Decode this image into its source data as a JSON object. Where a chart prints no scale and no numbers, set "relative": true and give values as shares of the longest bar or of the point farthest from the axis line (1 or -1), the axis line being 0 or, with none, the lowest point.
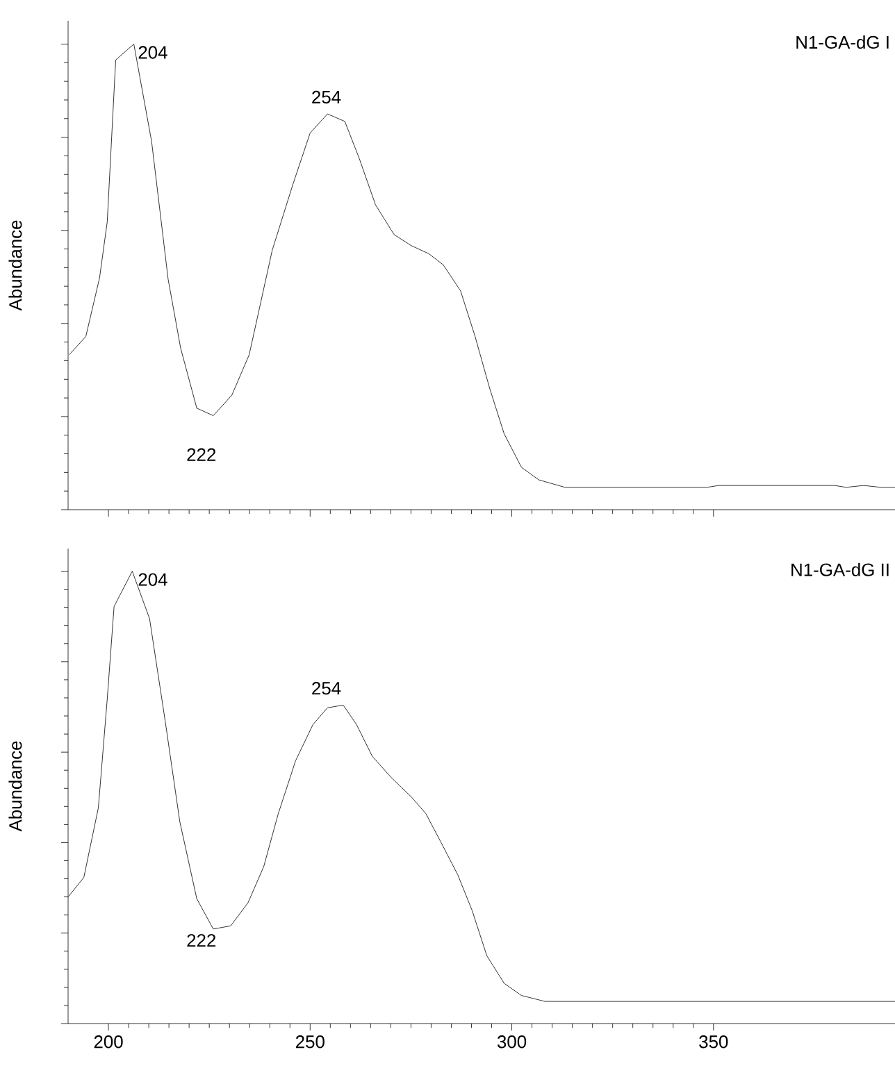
{
  "chart_data": [
    {
      "type": "line",
      "title": "N1-GA-dG I",
      "ylabel": "Abundance",
      "relative": true,
      "tick_labels": false,
      "color": "#000000",
      "xlim": [
        190,
        395
      ],
      "xticks": [
        200,
        250,
        300,
        350
      ],
      "x": [
        190.3,
        194.4,
        197.8,
        199.7,
        201.8,
        206.3,
        210.7,
        214.8,
        217.9,
        221.9,
        226.0,
        230.6,
        234.9,
        240.6,
        245.7,
        250.0,
        254.3,
        258.6,
        262.2,
        266.2,
        270.8,
        275.1,
        279.4,
        283.0,
        287.3,
        290.9,
        294.5,
        298.1,
        302.4,
        306.7,
        313.2,
        348.4,
        351.3,
        380.0,
        382.9,
        387.2,
        391.5,
        395.0
      ],
      "values": [
        0.333,
        0.372,
        0.498,
        0.618,
        0.966,
        1.0,
        0.791,
        0.495,
        0.347,
        0.218,
        0.202,
        0.246,
        0.333,
        0.557,
        0.698,
        0.809,
        0.85,
        0.834,
        0.754,
        0.655,
        0.591,
        0.567,
        0.55,
        0.526,
        0.47,
        0.372,
        0.261,
        0.163,
        0.091,
        0.064,
        0.048,
        0.048,
        0.052,
        0.052,
        0.048,
        0.052,
        0.048,
        0.048
      ],
      "annotations": [
        {
          "text": "204",
          "x": 204,
          "y": 1.0
        },
        {
          "text": "254",
          "x": 254,
          "y": 0.85
        },
        {
          "text": "222",
          "x": 222,
          "y": 0.202
        }
      ]
    },
    {
      "type": "line",
      "title": "N1-GA-dG II",
      "ylabel": "Abundance",
      "relative": true,
      "tick_labels": "x",
      "color": "#000000",
      "xlim": [
        190,
        395
      ],
      "xticks": [
        200,
        250,
        300,
        350
      ],
      "x": [
        190.0,
        193.9,
        197.5,
        199.7,
        201.4,
        205.9,
        210.2,
        214.1,
        217.7,
        221.9,
        226.0,
        230.3,
        234.6,
        238.5,
        242.1,
        246.4,
        250.7,
        254.3,
        258.2,
        261.5,
        265.4,
        270.1,
        275.1,
        278.7,
        282.3,
        286.6,
        290.2,
        293.8,
        298.1,
        302.4,
        308.2,
        395.0
      ],
      "values": [
        0.28,
        0.323,
        0.477,
        0.717,
        0.922,
        1.0,
        0.895,
        0.667,
        0.446,
        0.276,
        0.209,
        0.216,
        0.267,
        0.347,
        0.464,
        0.581,
        0.661,
        0.698,
        0.704,
        0.661,
        0.591,
        0.544,
        0.501,
        0.464,
        0.403,
        0.329,
        0.249,
        0.15,
        0.089,
        0.062,
        0.049,
        0.049
      ],
      "annotations": [
        {
          "text": "204",
          "x": 204,
          "y": 1.0
        },
        {
          "text": "254",
          "x": 254,
          "y": 0.704
        },
        {
          "text": "222",
          "x": 222,
          "y": 0.27
        }
      ]
    }
  ]
}
